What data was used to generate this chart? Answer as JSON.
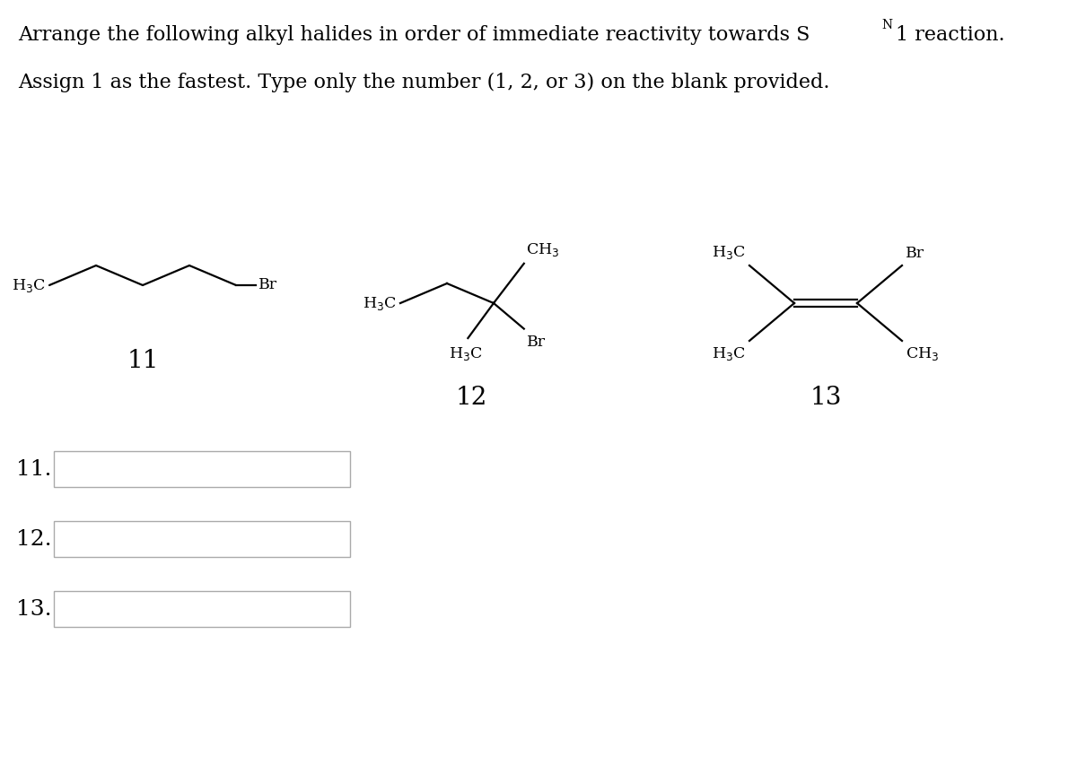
{
  "background": "#ffffff",
  "text_color": "#000000",
  "line_color": "#000000",
  "box_color": "#aaaaaa",
  "title_fontsize": 16,
  "label_fontsize": 20,
  "answer_fontsize": 18,
  "chem_fontsize": 12.5,
  "sub_fontsize": 10,
  "answer_labels": [
    "11.",
    "12.",
    "13."
  ],
  "mol_labels": [
    "11",
    "12",
    "13"
  ]
}
